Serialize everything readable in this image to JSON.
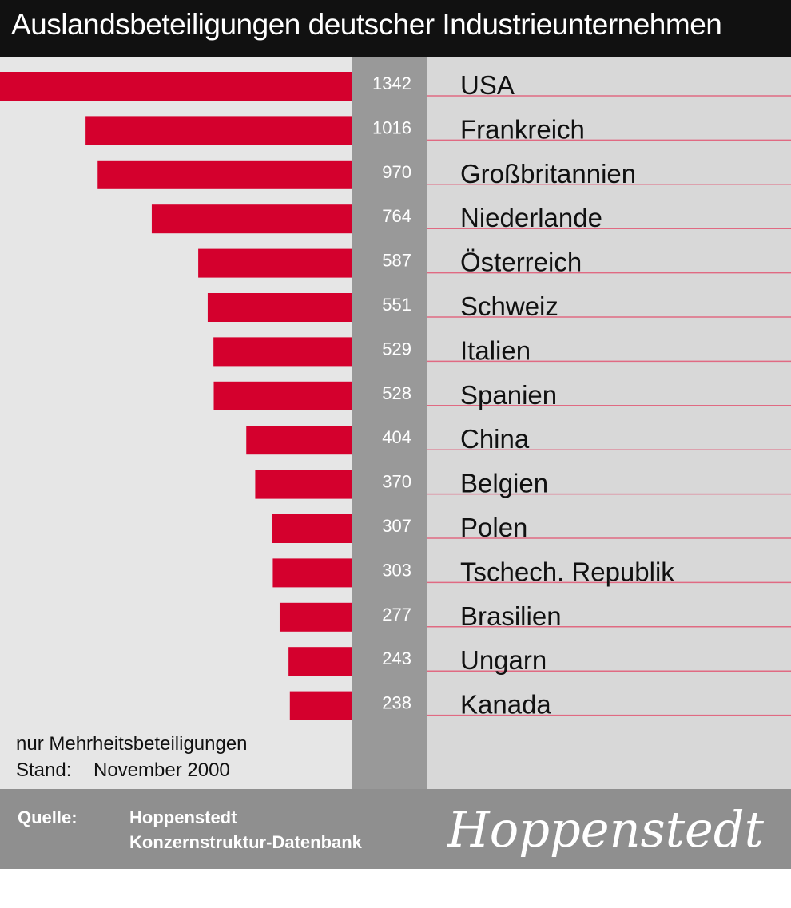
{
  "title": "Auslandsbeteiligungen deutscher Industrieunternehmen",
  "chart_data": {
    "type": "bar",
    "orientation": "horizontal",
    "title": "Auslandsbeteiligungen deutscher Industrieunternehmen",
    "categories": [
      "USA",
      "Frankreich",
      "Großbritannien",
      "Niederlande",
      "Österreich",
      "Schweiz",
      "Italien",
      "Spanien",
      "China",
      "Belgien",
      "Polen",
      "Tschech. Republik",
      "Brasilien",
      "Ungarn",
      "Kanada"
    ],
    "values": [
      1342,
      1016,
      970,
      764,
      587,
      551,
      529,
      528,
      404,
      370,
      307,
      303,
      277,
      243,
      238
    ],
    "bar_color": "#d4002d"
  },
  "notes": {
    "line1": "nur Mehrheitsbeteiligungen",
    "stand_label": "Stand:",
    "stand_value": "November 2000"
  },
  "source": {
    "label": "Quelle:",
    "line1": "Hoppenstedt",
    "line2": "Konzernstruktur-Datenbank"
  },
  "logo_text": "Hoppenstedt"
}
